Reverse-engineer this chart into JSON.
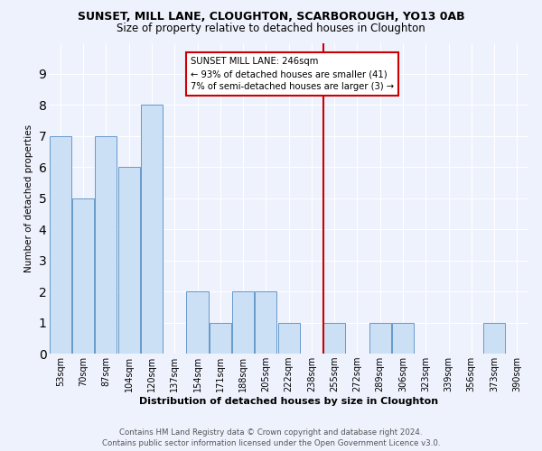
{
  "title": "SUNSET, MILL LANE, CLOUGHTON, SCARBOROUGH, YO13 0AB",
  "subtitle": "Size of property relative to detached houses in Cloughton",
  "xlabel": "Distribution of detached houses by size in Cloughton",
  "ylabel": "Number of detached properties",
  "bar_labels": [
    "53sqm",
    "70sqm",
    "87sqm",
    "104sqm",
    "120sqm",
    "137sqm",
    "154sqm",
    "171sqm",
    "188sqm",
    "205sqm",
    "222sqm",
    "238sqm",
    "255sqm",
    "272sqm",
    "289sqm",
    "306sqm",
    "323sqm",
    "339sqm",
    "356sqm",
    "373sqm",
    "390sqm"
  ],
  "bar_values": [
    7,
    5,
    7,
    6,
    8,
    0,
    2,
    1,
    2,
    2,
    1,
    0,
    1,
    0,
    1,
    1,
    0,
    0,
    0,
    1,
    0
  ],
  "bar_color": "#cce0f5",
  "bar_edge_color": "#6699cc",
  "vline_pos": 12.0,
  "vline_color": "#cc0000",
  "annotation_title": "SUNSET MILL LANE: 246sqm",
  "annotation_line1": "← 93% of detached houses are smaller (41)",
  "annotation_line2": "7% of semi-detached houses are larger (3) →",
  "annotation_box_color": "#cc0000",
  "ylim": [
    0,
    10
  ],
  "yticks": [
    0,
    1,
    2,
    3,
    4,
    5,
    6,
    7,
    8,
    9
  ],
  "footnote": "Contains HM Land Registry data © Crown copyright and database right 2024.\nContains public sector information licensed under the Open Government Licence v3.0.",
  "bg_color": "#eef2fc",
  "grid_color": "#ffffff",
  "title_fontsize": 9,
  "subtitle_fontsize": 8.5
}
